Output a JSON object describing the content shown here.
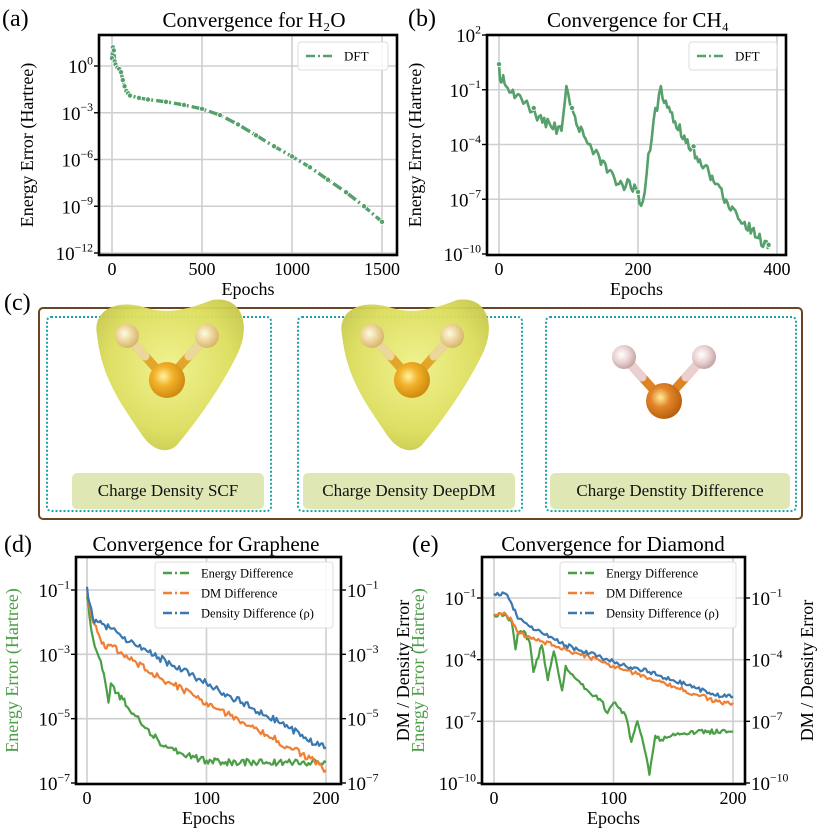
{
  "panels": {
    "a": {
      "label": "(a)"
    },
    "b": {
      "label": "(b)"
    },
    "c": {
      "label": "(c)",
      "images": [
        {
          "caption": "Charge Density SCF",
          "style": "density-cloud"
        },
        {
          "caption": "Charge Density DeepDM",
          "style": "density-cloud"
        },
        {
          "caption": "Charge Denstity Difference",
          "style": "molecule-only"
        }
      ],
      "colors": {
        "frame": "#6b4422",
        "subframe": "#1aa3a0",
        "caption_bg": "#dfe8b5",
        "cloud": "#d9dc5a",
        "oxygen": "#e39a1e",
        "hydrogen": "#e8c98a",
        "oxygen_diff": "#d9751c",
        "hydrogen_diff": "#e6c9c9"
      }
    },
    "d": {
      "label": "(d)"
    },
    "e": {
      "label": "(e)"
    }
  },
  "chart_data": [
    {
      "id": "a",
      "type": "line",
      "title": "Convergence for H₂O",
      "xlabel": "Epochs",
      "ylabel": "Energy Error (Hartree)",
      "yscale": "log",
      "xlim": [
        -40,
        1540
      ],
      "ylim_exp": [
        -12,
        1.5
      ],
      "xticks": [
        0,
        500,
        1000,
        1500
      ],
      "xtick_labels": [
        "0",
        "500",
        "1000",
        "1500"
      ],
      "yticks_exp": [
        0,
        -3,
        -6,
        -9,
        -12
      ],
      "ytick_labels": [
        "10^0",
        "10^-3",
        "10^-6",
        "10^-9",
        "10^-12"
      ],
      "grid": true,
      "legend": {
        "position": "top-right",
        "entries": [
          "DFT"
        ]
      },
      "series": [
        {
          "name": "DFT",
          "color": "#55a06b",
          "style": "dash-dot",
          "x": [
            0,
            5,
            10,
            15,
            20,
            30,
            40,
            50,
            60,
            70,
            80,
            90,
            100,
            150,
            200,
            300,
            400,
            500,
            600,
            700,
            800,
            900,
            1000,
            1100,
            1200,
            1300,
            1400,
            1500
          ],
          "log10y": [
            0.5,
            1.2,
            1.0,
            0.3,
            0.1,
            -0.1,
            -0.2,
            -0.4,
            -0.9,
            -1.3,
            -1.6,
            -1.75,
            -1.9,
            -2.05,
            -2.15,
            -2.3,
            -2.5,
            -2.75,
            -3.15,
            -3.75,
            -4.45,
            -5.15,
            -5.8,
            -6.5,
            -7.3,
            -8.1,
            -9.0,
            -10.0
          ]
        }
      ]
    },
    {
      "id": "b",
      "type": "line",
      "title": "Convergence for CH₄",
      "xlabel": "Epochs",
      "ylabel": "Energy Error (Hartree)",
      "yscale": "log",
      "xlim": [
        -18,
        410
      ],
      "ylim_exp": [
        -10,
        2
      ],
      "xticks": [
        0,
        200,
        400
      ],
      "xtick_labels": [
        "0",
        "200",
        "400"
      ],
      "yticks_exp": [
        2,
        -1,
        -4,
        -7,
        -10
      ],
      "ytick_labels": [
        "10^2",
        "10^-1",
        "10^-4",
        "10^-7",
        "10^-10"
      ],
      "grid": true,
      "legend": {
        "position": "top-right",
        "entries": [
          "DFT"
        ]
      },
      "series": [
        {
          "name": "DFT",
          "color": "#55a06b",
          "style": "dash-dot",
          "x": [
            0,
            3,
            6,
            10,
            20,
            30,
            40,
            50,
            60,
            70,
            80,
            88,
            92,
            97,
            105,
            120,
            140,
            160,
            175,
            185,
            195,
            200,
            207,
            215,
            225,
            233,
            240,
            260,
            280,
            300,
            320,
            340,
            360,
            375,
            385,
            388
          ],
          "log10y": [
            0.4,
            -0.6,
            -0.2,
            -0.8,
            -1.0,
            -1.3,
            -1.6,
            -2.0,
            -2.4,
            -2.6,
            -2.8,
            -3.0,
            -2.6,
            -0.8,
            -2.0,
            -3.2,
            -4.3,
            -5.4,
            -6.0,
            -5.9,
            -6.2,
            -6.6,
            -7.1,
            -4.5,
            -2.0,
            -0.8,
            -1.6,
            -2.9,
            -4.1,
            -5.2,
            -6.4,
            -7.6,
            -8.3,
            -8.9,
            -9.3,
            -9.5
          ]
        }
      ]
    },
    {
      "id": "d",
      "type": "line",
      "title": "Convergence for Graphene",
      "xlabel": "Epochs",
      "ylabel": "Energy Error (Hartree)",
      "ylabel_right": "DM / Density Error",
      "yscale": "log",
      "xlim": [
        -10,
        210
      ],
      "ylim_exp": [
        -7,
        -0.5
      ],
      "xticks": [
        0,
        100,
        200
      ],
      "xtick_labels": [
        "0",
        "100",
        "200"
      ],
      "yticks_exp": [
        -1,
        -3,
        -5,
        -7
      ],
      "ytick_labels": [
        "10^-1",
        "10^-3",
        "10^-5",
        "10^-7"
      ],
      "ytick_labels_right": [
        "10^-1",
        "10^-3",
        "10^-5",
        "10^-7"
      ],
      "grid": true,
      "legend": {
        "position": "top-right",
        "entries": [
          "Energy Difference",
          "DM Difference",
          "Density Difference (ρ)"
        ]
      },
      "series": [
        {
          "name": "Energy Difference",
          "color": "#4a9e45",
          "x": [
            0,
            2,
            5,
            8,
            10,
            13,
            15,
            18,
            20,
            25,
            30,
            35,
            40,
            50,
            60,
            70,
            80,
            90,
            100,
            120,
            150,
            180,
            200
          ],
          "log10y": [
            -1.2,
            -1.8,
            -2.5,
            -2.9,
            -3.1,
            -3.5,
            -3.8,
            -4.5,
            -3.9,
            -4.2,
            -4.4,
            -4.7,
            -4.9,
            -5.3,
            -5.7,
            -5.9,
            -6.1,
            -6.2,
            -6.3,
            -6.35,
            -6.35,
            -6.35,
            -6.35
          ]
        },
        {
          "name": "DM Difference",
          "color": "#f07f33",
          "x": [
            0,
            2,
            5,
            10,
            15,
            20,
            30,
            40,
            50,
            60,
            70,
            80,
            90,
            100,
            110,
            120,
            130,
            140,
            150,
            160,
            170,
            180,
            190,
            200
          ],
          "log10y": [
            -1.1,
            -1.5,
            -2.0,
            -2.4,
            -2.8,
            -2.7,
            -3.0,
            -3.2,
            -3.5,
            -3.7,
            -3.9,
            -4.1,
            -4.3,
            -4.5,
            -4.7,
            -4.9,
            -5.1,
            -5.3,
            -5.5,
            -5.7,
            -5.9,
            -6.1,
            -6.3,
            -6.6
          ]
        },
        {
          "name": "Density Difference (ρ)",
          "color": "#3a78b0",
          "x": [
            0,
            2,
            5,
            10,
            15,
            20,
            30,
            40,
            50,
            60,
            70,
            80,
            90,
            100,
            110,
            120,
            130,
            140,
            150,
            160,
            170,
            180,
            190,
            200
          ],
          "log10y": [
            -0.9,
            -1.4,
            -1.9,
            -2.0,
            -2.1,
            -2.2,
            -2.5,
            -2.7,
            -2.9,
            -3.1,
            -3.3,
            -3.5,
            -3.7,
            -3.9,
            -4.1,
            -4.3,
            -4.5,
            -4.7,
            -4.9,
            -5.1,
            -5.3,
            -5.5,
            -5.8,
            -5.9
          ]
        }
      ]
    },
    {
      "id": "e",
      "type": "line",
      "title": "Convergence for Diamond",
      "xlabel": "Epochs",
      "ylabel": "Energy Error (Hartree)",
      "ylabel_right": "DM / Density Error",
      "yscale": "log",
      "xlim": [
        -10,
        210
      ],
      "ylim_exp": [
        -10,
        2
      ],
      "xticks": [
        0,
        100,
        200
      ],
      "xtick_labels": [
        "0",
        "100",
        "200"
      ],
      "yticks_exp": [
        -1,
        -4,
        -7,
        -10
      ],
      "ytick_labels": [
        "10^-1",
        "10^-4",
        "10^-7",
        "10^-10"
      ],
      "ytick_labels_right": [
        "10^-1",
        "10^-4",
        "10^-7",
        "10^-10"
      ],
      "grid": true,
      "legend": {
        "position": "top-right",
        "entries": [
          "Energy Difference",
          "DM Difference",
          "Density Difference (ρ)"
        ]
      },
      "series": [
        {
          "name": "Energy Difference",
          "color": "#4a9e45",
          "x": [
            0,
            10,
            15,
            18,
            20,
            25,
            30,
            33,
            40,
            45,
            50,
            57,
            60,
            70,
            80,
            90,
            95,
            100,
            110,
            115,
            120,
            125,
            130,
            135,
            140,
            150,
            170,
            200
          ],
          "log10y": [
            -1.8,
            -1.8,
            -2.2,
            -3.5,
            -2.7,
            -2.6,
            -3.2,
            -4.6,
            -3.3,
            -5.0,
            -3.6,
            -5.5,
            -4.3,
            -5.0,
            -5.6,
            -6.0,
            -6.6,
            -6.1,
            -6.7,
            -8.0,
            -7.0,
            -8.1,
            -9.6,
            -7.7,
            -7.9,
            -7.6,
            -7.5,
            -7.5
          ]
        },
        {
          "name": "DM Difference",
          "color": "#f07f33",
          "x": [
            0,
            10,
            15,
            20,
            30,
            40,
            50,
            60,
            70,
            80,
            90,
            100,
            110,
            120,
            130,
            140,
            150,
            160,
            170,
            180,
            190,
            200
          ],
          "log10y": [
            -1.8,
            -1.8,
            -2.1,
            -2.7,
            -2.9,
            -3.1,
            -3.3,
            -3.5,
            -3.7,
            -3.9,
            -4.1,
            -4.3,
            -4.5,
            -4.7,
            -4.9,
            -5.1,
            -5.3,
            -5.5,
            -5.7,
            -5.9,
            -6.1,
            -6.1
          ]
        },
        {
          "name": "Density Difference (ρ)",
          "color": "#3a78b0",
          "x": [
            0,
            10,
            15,
            20,
            30,
            40,
            50,
            60,
            70,
            80,
            90,
            100,
            110,
            120,
            130,
            140,
            150,
            160,
            170,
            180,
            190,
            200
          ],
          "log10y": [
            -0.8,
            -0.8,
            -1.3,
            -2.0,
            -2.4,
            -2.7,
            -3.0,
            -3.3,
            -3.5,
            -3.7,
            -3.9,
            -4.1,
            -4.3,
            -4.4,
            -4.6,
            -4.8,
            -5.0,
            -5.2,
            -5.4,
            -5.6,
            -5.8,
            -5.8
          ]
        }
      ]
    }
  ]
}
